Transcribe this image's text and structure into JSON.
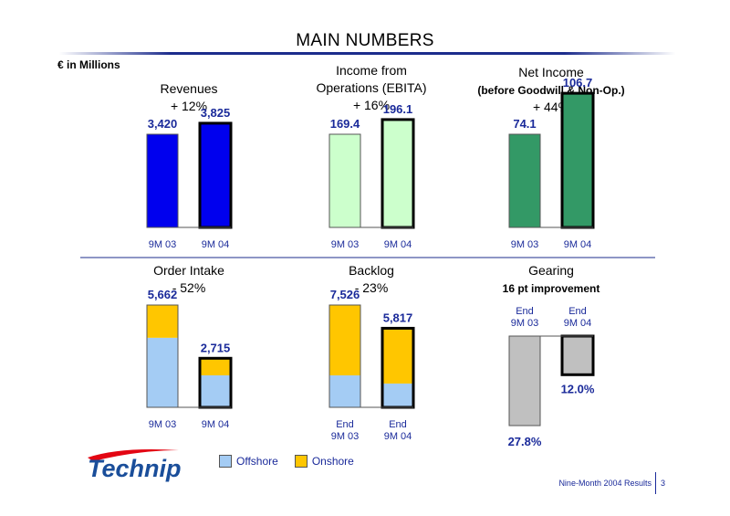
{
  "slide": {
    "title": "MAIN NUMBERS",
    "units": "€  in Millions",
    "footer_note": "Nine-Month 2004 Results",
    "page_number": "3",
    "brand": "Technip"
  },
  "legend": [
    {
      "label": "Offshore",
      "color": "#a4ccf4"
    },
    {
      "label": "Onshore",
      "color": "#ffc600"
    }
  ],
  "chart_data": [
    {
      "type": "bar",
      "title": [
        "Revenues",
        "+ 12%"
      ],
      "categories": [
        "9M 03",
        "9M 04"
      ],
      "values": [
        3420,
        3825
      ],
      "value_labels": [
        "3,420",
        "3,825"
      ],
      "colors": [
        "#0000ee",
        "#0000ee"
      ]
    },
    {
      "type": "bar",
      "title": [
        "Income from",
        "Operations (EBITA)",
        "+ 16%"
      ],
      "categories": [
        "9M 03",
        "9M 04"
      ],
      "values": [
        169.4,
        196.1
      ],
      "value_labels": [
        "169.4",
        "196.1"
      ],
      "colors": [
        "#ccffcc",
        "#ccffcc"
      ]
    },
    {
      "type": "bar",
      "title": [
        "Net Income",
        "(before Goodwill & Non-Op.)",
        "+ 44%"
      ],
      "categories": [
        "9M 03",
        "9M 04"
      ],
      "values": [
        74.1,
        106.7
      ],
      "value_labels": [
        "74.1",
        "106.7"
      ],
      "colors": [
        "#339966",
        "#339966"
      ]
    },
    {
      "type": "bar",
      "stacked": true,
      "title": [
        "Order Intake",
        "- 52%"
      ],
      "categories": [
        "9M 03",
        "9M 04"
      ],
      "series": [
        {
          "name": "Offshore",
          "values": [
            3850,
            1770
          ],
          "color": "#a4ccf4"
        },
        {
          "name": "Onshore",
          "values": [
            1812,
            945
          ],
          "color": "#ffc600"
        }
      ],
      "value_labels": [
        "5,662",
        "2,715"
      ]
    },
    {
      "type": "bar",
      "stacked": true,
      "title": [
        "Backlog",
        "- 23%"
      ],
      "categories": [
        "End\n9M 03",
        "End\n9M 04"
      ],
      "series": [
        {
          "name": "Offshore",
          "values": [
            2350,
            1750
          ],
          "color": "#a4ccf4"
        },
        {
          "name": "Onshore",
          "values": [
            5176,
            4067
          ],
          "color": "#ffc600"
        }
      ],
      "value_labels": [
        "7,526",
        "5,817"
      ]
    },
    {
      "type": "bar",
      "title": [
        "Gearing",
        "16 pt improvement"
      ],
      "categories": [
        "End\n9M 03",
        "End\n9M 04"
      ],
      "values": [
        27.8,
        12.0
      ],
      "value_labels": [
        "27.8%",
        "12.0%"
      ],
      "colors": [
        "#c0c0c0",
        "#c0c0c0"
      ],
      "orientation": "downward"
    }
  ]
}
